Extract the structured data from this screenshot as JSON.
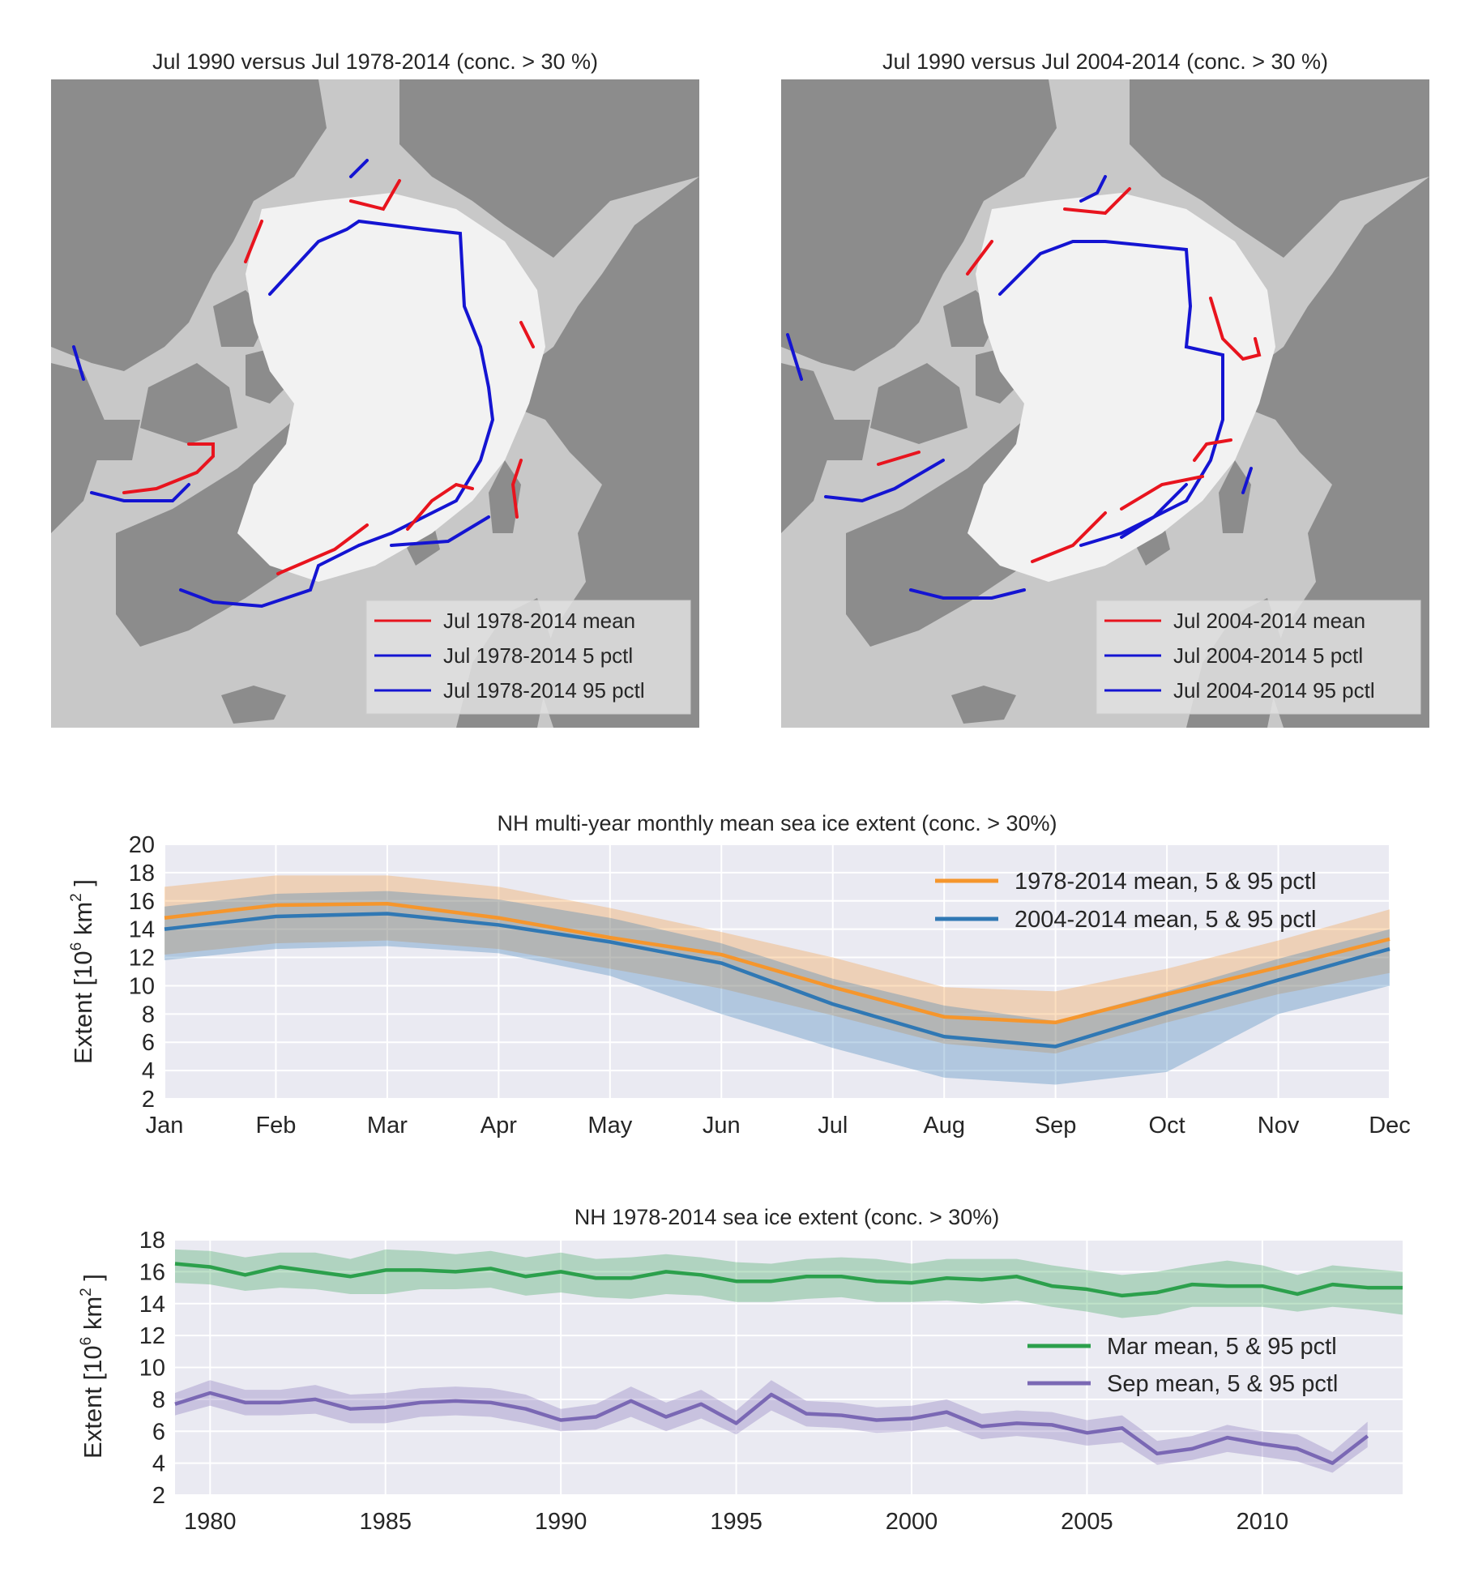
{
  "colors": {
    "ocean": "#c8c8c8",
    "land": "#8c8c8c",
    "ice": "#f2f2f2",
    "mean_line": "#e8141e",
    "pctl_line": "#1414d2",
    "axes_bg": "#eaeaf2",
    "grid": "#ffffff",
    "orange": "#f5962d",
    "blue": "#3078b4",
    "green": "#2ca04c",
    "purple": "#7a68b4"
  },
  "maps": [
    {
      "title": "Jul 1990 versus Jul 1978-2014 (conc. > 30 %)",
      "legend": [
        "Jul 1978-2014 mean",
        "Jul 1978-2014 5 pctl",
        "Jul 1978-2014 95 pctl"
      ]
    },
    {
      "title": "Jul 1990 versus Jul 2004-2014 (conc. > 30 %)",
      "legend": [
        "Jul 2004-2014 mean",
        "Jul 2004-2014 5 pctl",
        "Jul 2004-2014 95 pctl"
      ]
    }
  ],
  "chart_data": [
    {
      "type": "line",
      "title": "NH multi-year monthly mean sea ice extent (conc. > 30%)",
      "xlabel": "",
      "ylabel": "Extent [10^6 km^2]",
      "ylabel_parts": {
        "prefix": "Extent [10",
        "exp1": "6",
        "unit": " km",
        "exp2": "2",
        "suffix": " ]"
      },
      "categories": [
        "Jan",
        "Feb",
        "Mar",
        "Apr",
        "May",
        "Jun",
        "Jul",
        "Aug",
        "Sep",
        "Oct",
        "Nov",
        "Dec"
      ],
      "ylim": [
        2,
        20
      ],
      "yticks": [
        2,
        4,
        6,
        8,
        10,
        12,
        14,
        16,
        18,
        20
      ],
      "grid": true,
      "legend_position": "top-right",
      "series": [
        {
          "name": "1978-2014 mean, 5 & 95 pctl",
          "color": "orange",
          "values": [
            14.8,
            15.7,
            15.8,
            14.8,
            13.4,
            12.2,
            9.9,
            7.8,
            7.4,
            9.4,
            11.3,
            13.3
          ],
          "p5": [
            12.2,
            13.0,
            13.2,
            12.6,
            11.2,
            9.8,
            7.9,
            5.9,
            5.2,
            7.4,
            9.4,
            10.9
          ],
          "p95": [
            17.0,
            17.8,
            17.8,
            17.0,
            15.5,
            13.8,
            12.0,
            9.9,
            9.6,
            11.2,
            13.2,
            15.4
          ]
        },
        {
          "name": "2004-2014 mean, 5 & 95 pctl",
          "color": "blue",
          "values": [
            14.0,
            14.9,
            15.1,
            14.3,
            13.1,
            11.6,
            8.7,
            6.4,
            5.7,
            8.1,
            10.4,
            12.6
          ],
          "p5": [
            11.8,
            12.6,
            12.8,
            12.3,
            10.7,
            8.0,
            5.6,
            3.5,
            3.0,
            3.9,
            8.0,
            10.0
          ],
          "p95": [
            15.6,
            16.5,
            16.7,
            16.1,
            14.8,
            13.0,
            10.5,
            8.6,
            7.5,
            9.6,
            11.9,
            14.0
          ]
        }
      ]
    },
    {
      "type": "line",
      "title": "NH 1978-2014 sea ice extent (conc. > 30%)",
      "xlabel": "",
      "ylabel": "Extent [10^6 km^2]",
      "ylabel_parts": {
        "prefix": "Extent [10",
        "exp1": "6",
        "unit": " km",
        "exp2": "2",
        "suffix": " ]"
      },
      "xlim": [
        1979,
        2014
      ],
      "xticks": [
        1980,
        1985,
        1990,
        1995,
        2000,
        2005,
        2010
      ],
      "ylim": [
        2,
        18
      ],
      "yticks": [
        2,
        4,
        6,
        8,
        10,
        12,
        14,
        16,
        18
      ],
      "grid": true,
      "legend_position": "right",
      "series": [
        {
          "name": "Mar mean, 5 & 95 pctl",
          "color": "green",
          "x": [
            1979,
            1980,
            1981,
            1982,
            1983,
            1984,
            1985,
            1986,
            1987,
            1988,
            1989,
            1990,
            1991,
            1992,
            1993,
            1994,
            1995,
            1996,
            1997,
            1998,
            1999,
            2000,
            2001,
            2002,
            2003,
            2004,
            2005,
            2006,
            2007,
            2008,
            2009,
            2010,
            2011,
            2012,
            2013,
            2014
          ],
          "values": [
            16.5,
            16.3,
            15.8,
            16.3,
            16.0,
            15.7,
            16.1,
            16.1,
            16.0,
            16.2,
            15.7,
            16.0,
            15.6,
            15.6,
            16.0,
            15.8,
            15.4,
            15.4,
            15.7,
            15.7,
            15.4,
            15.3,
            15.6,
            15.5,
            15.7,
            15.1,
            14.9,
            14.5,
            14.7,
            15.2,
            15.1,
            15.1,
            14.6,
            15.2,
            15.0,
            15.0
          ],
          "p5": [
            15.3,
            15.2,
            14.8,
            15.0,
            14.9,
            14.6,
            14.6,
            14.9,
            14.9,
            15.0,
            14.5,
            14.7,
            14.4,
            14.3,
            14.6,
            14.5,
            14.1,
            14.1,
            14.3,
            14.4,
            14.1,
            14.1,
            14.2,
            14.0,
            14.2,
            13.8,
            13.5,
            13.1,
            13.3,
            13.8,
            13.8,
            13.8,
            13.5,
            13.8,
            13.6,
            13.3
          ],
          "p95": [
            17.4,
            17.3,
            16.9,
            17.2,
            17.2,
            16.8,
            17.4,
            17.3,
            17.1,
            17.3,
            16.9,
            17.2,
            16.8,
            16.9,
            17.1,
            16.9,
            16.6,
            16.5,
            16.8,
            16.9,
            16.8,
            16.5,
            16.8,
            16.8,
            16.8,
            16.4,
            16.1,
            15.8,
            16.0,
            16.4,
            16.7,
            16.4,
            15.8,
            16.4,
            16.2,
            16.0
          ]
        },
        {
          "name": "Sep mean, 5 & 95 pctl",
          "color": "purple",
          "x": [
            1979,
            1980,
            1981,
            1982,
            1983,
            1984,
            1985,
            1986,
            1987,
            1988,
            1989,
            1990,
            1991,
            1992,
            1993,
            1994,
            1995,
            1996,
            1997,
            1998,
            1999,
            2000,
            2001,
            2002,
            2003,
            2004,
            2005,
            2006,
            2007,
            2008,
            2009,
            2010,
            2011,
            2012,
            2013
          ],
          "values": [
            7.7,
            8.4,
            7.8,
            7.8,
            8.0,
            7.4,
            7.5,
            7.8,
            7.9,
            7.8,
            7.4,
            6.7,
            6.9,
            7.9,
            6.9,
            7.7,
            6.5,
            8.3,
            7.1,
            7.0,
            6.7,
            6.8,
            7.2,
            6.3,
            6.5,
            6.4,
            5.9,
            6.2,
            4.6,
            4.9,
            5.6,
            5.2,
            4.9,
            4.0,
            5.7
          ],
          "p5": [
            7.0,
            7.6,
            7.0,
            7.0,
            7.1,
            6.5,
            6.5,
            6.9,
            7.0,
            6.9,
            6.5,
            6.0,
            6.1,
            6.9,
            6.0,
            6.8,
            5.8,
            7.3,
            6.3,
            6.2,
            5.9,
            6.0,
            6.3,
            5.5,
            5.7,
            5.5,
            5.1,
            5.3,
            3.9,
            4.2,
            4.7,
            4.4,
            4.1,
            3.4,
            5.0
          ],
          "p95": [
            8.4,
            9.2,
            8.6,
            8.6,
            8.9,
            8.3,
            8.4,
            8.7,
            8.8,
            8.7,
            8.3,
            7.4,
            7.7,
            8.8,
            7.8,
            8.6,
            7.3,
            9.2,
            7.9,
            7.8,
            7.5,
            7.6,
            8.0,
            7.1,
            7.3,
            7.2,
            6.7,
            7.0,
            5.4,
            5.7,
            6.4,
            6.0,
            5.8,
            4.7,
            6.6
          ]
        }
      ]
    }
  ]
}
